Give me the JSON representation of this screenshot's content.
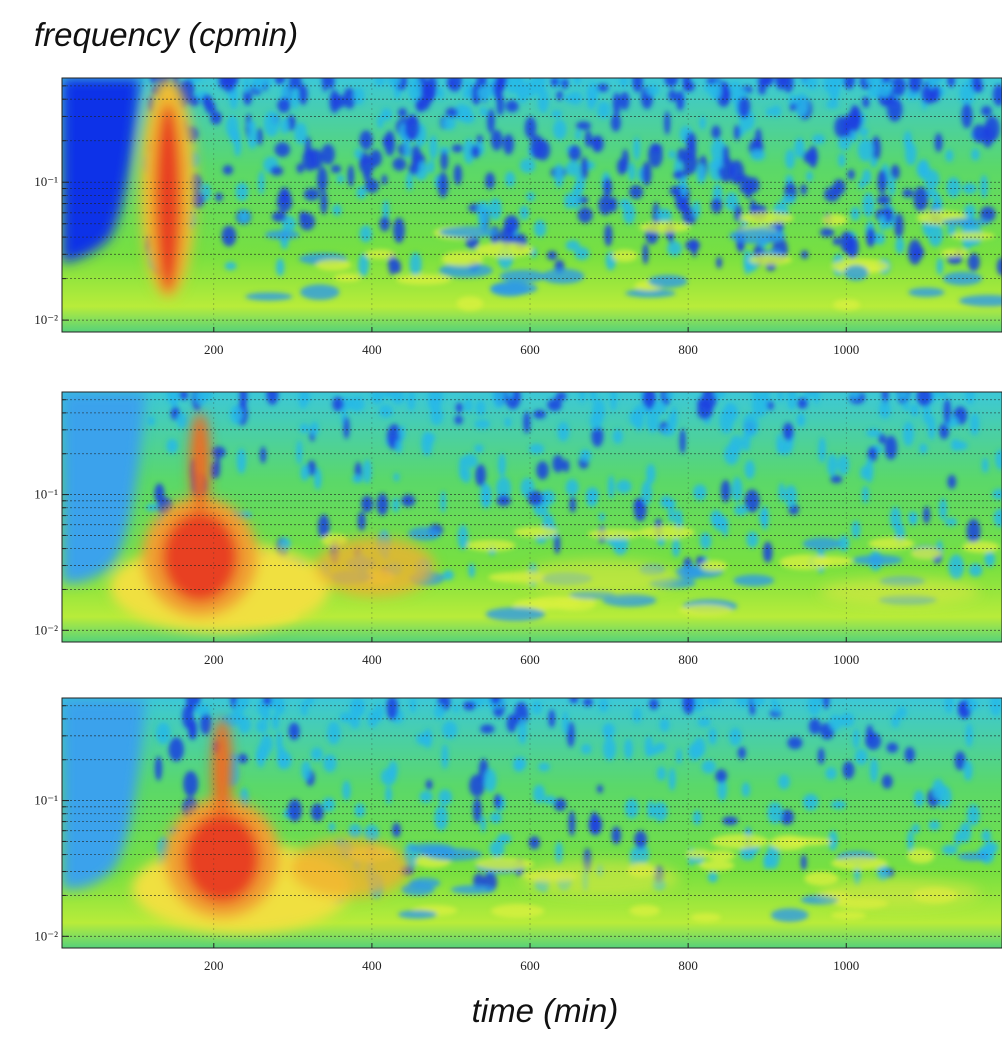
{
  "figure": {
    "ylabel": "frequency (cpmin)",
    "xlabel": "time (min)"
  },
  "chart_data": [
    {
      "type": "heatmap",
      "log_y": true,
      "grid": true,
      "xlim": [
        8,
        1197
      ],
      "xticks": [
        200,
        400,
        600,
        800,
        1000
      ],
      "ylim": [
        0.0082,
        0.57
      ],
      "yticks": [
        {
          "value": 0.01,
          "label": "10⁻²"
        },
        {
          "value": 0.1,
          "label": "10⁻¹"
        }
      ],
      "minor_yticks": [
        0.02,
        0.03,
        0.04,
        0.05,
        0.06,
        0.07,
        0.08,
        0.09,
        0.2,
        0.3,
        0.4,
        0.5
      ]
    },
    {
      "type": "heatmap",
      "log_y": true,
      "grid": true,
      "xlim": [
        8,
        1197
      ],
      "xticks": [
        200,
        400,
        600,
        800,
        1000
      ],
      "ylim": [
        0.0082,
        0.57
      ],
      "yticks": [
        {
          "value": 0.01,
          "label": "10⁻²"
        },
        {
          "value": 0.1,
          "label": "10⁻¹"
        }
      ],
      "minor_yticks": [
        0.02,
        0.03,
        0.04,
        0.05,
        0.06,
        0.07,
        0.08,
        0.09,
        0.2,
        0.3,
        0.4,
        0.5
      ]
    },
    {
      "type": "heatmap",
      "log_y": true,
      "grid": true,
      "xlim": [
        8,
        1197
      ],
      "xticks": [
        200,
        400,
        600,
        800,
        1000
      ],
      "ylim": [
        0.0082,
        0.57
      ],
      "yticks": [
        {
          "value": 0.01,
          "label": "10⁻²"
        },
        {
          "value": 0.1,
          "label": "10⁻¹"
        }
      ],
      "minor_yticks": [
        0.02,
        0.03,
        0.04,
        0.05,
        0.06,
        0.07,
        0.08,
        0.09,
        0.2,
        0.3,
        0.4,
        0.5
      ]
    }
  ]
}
